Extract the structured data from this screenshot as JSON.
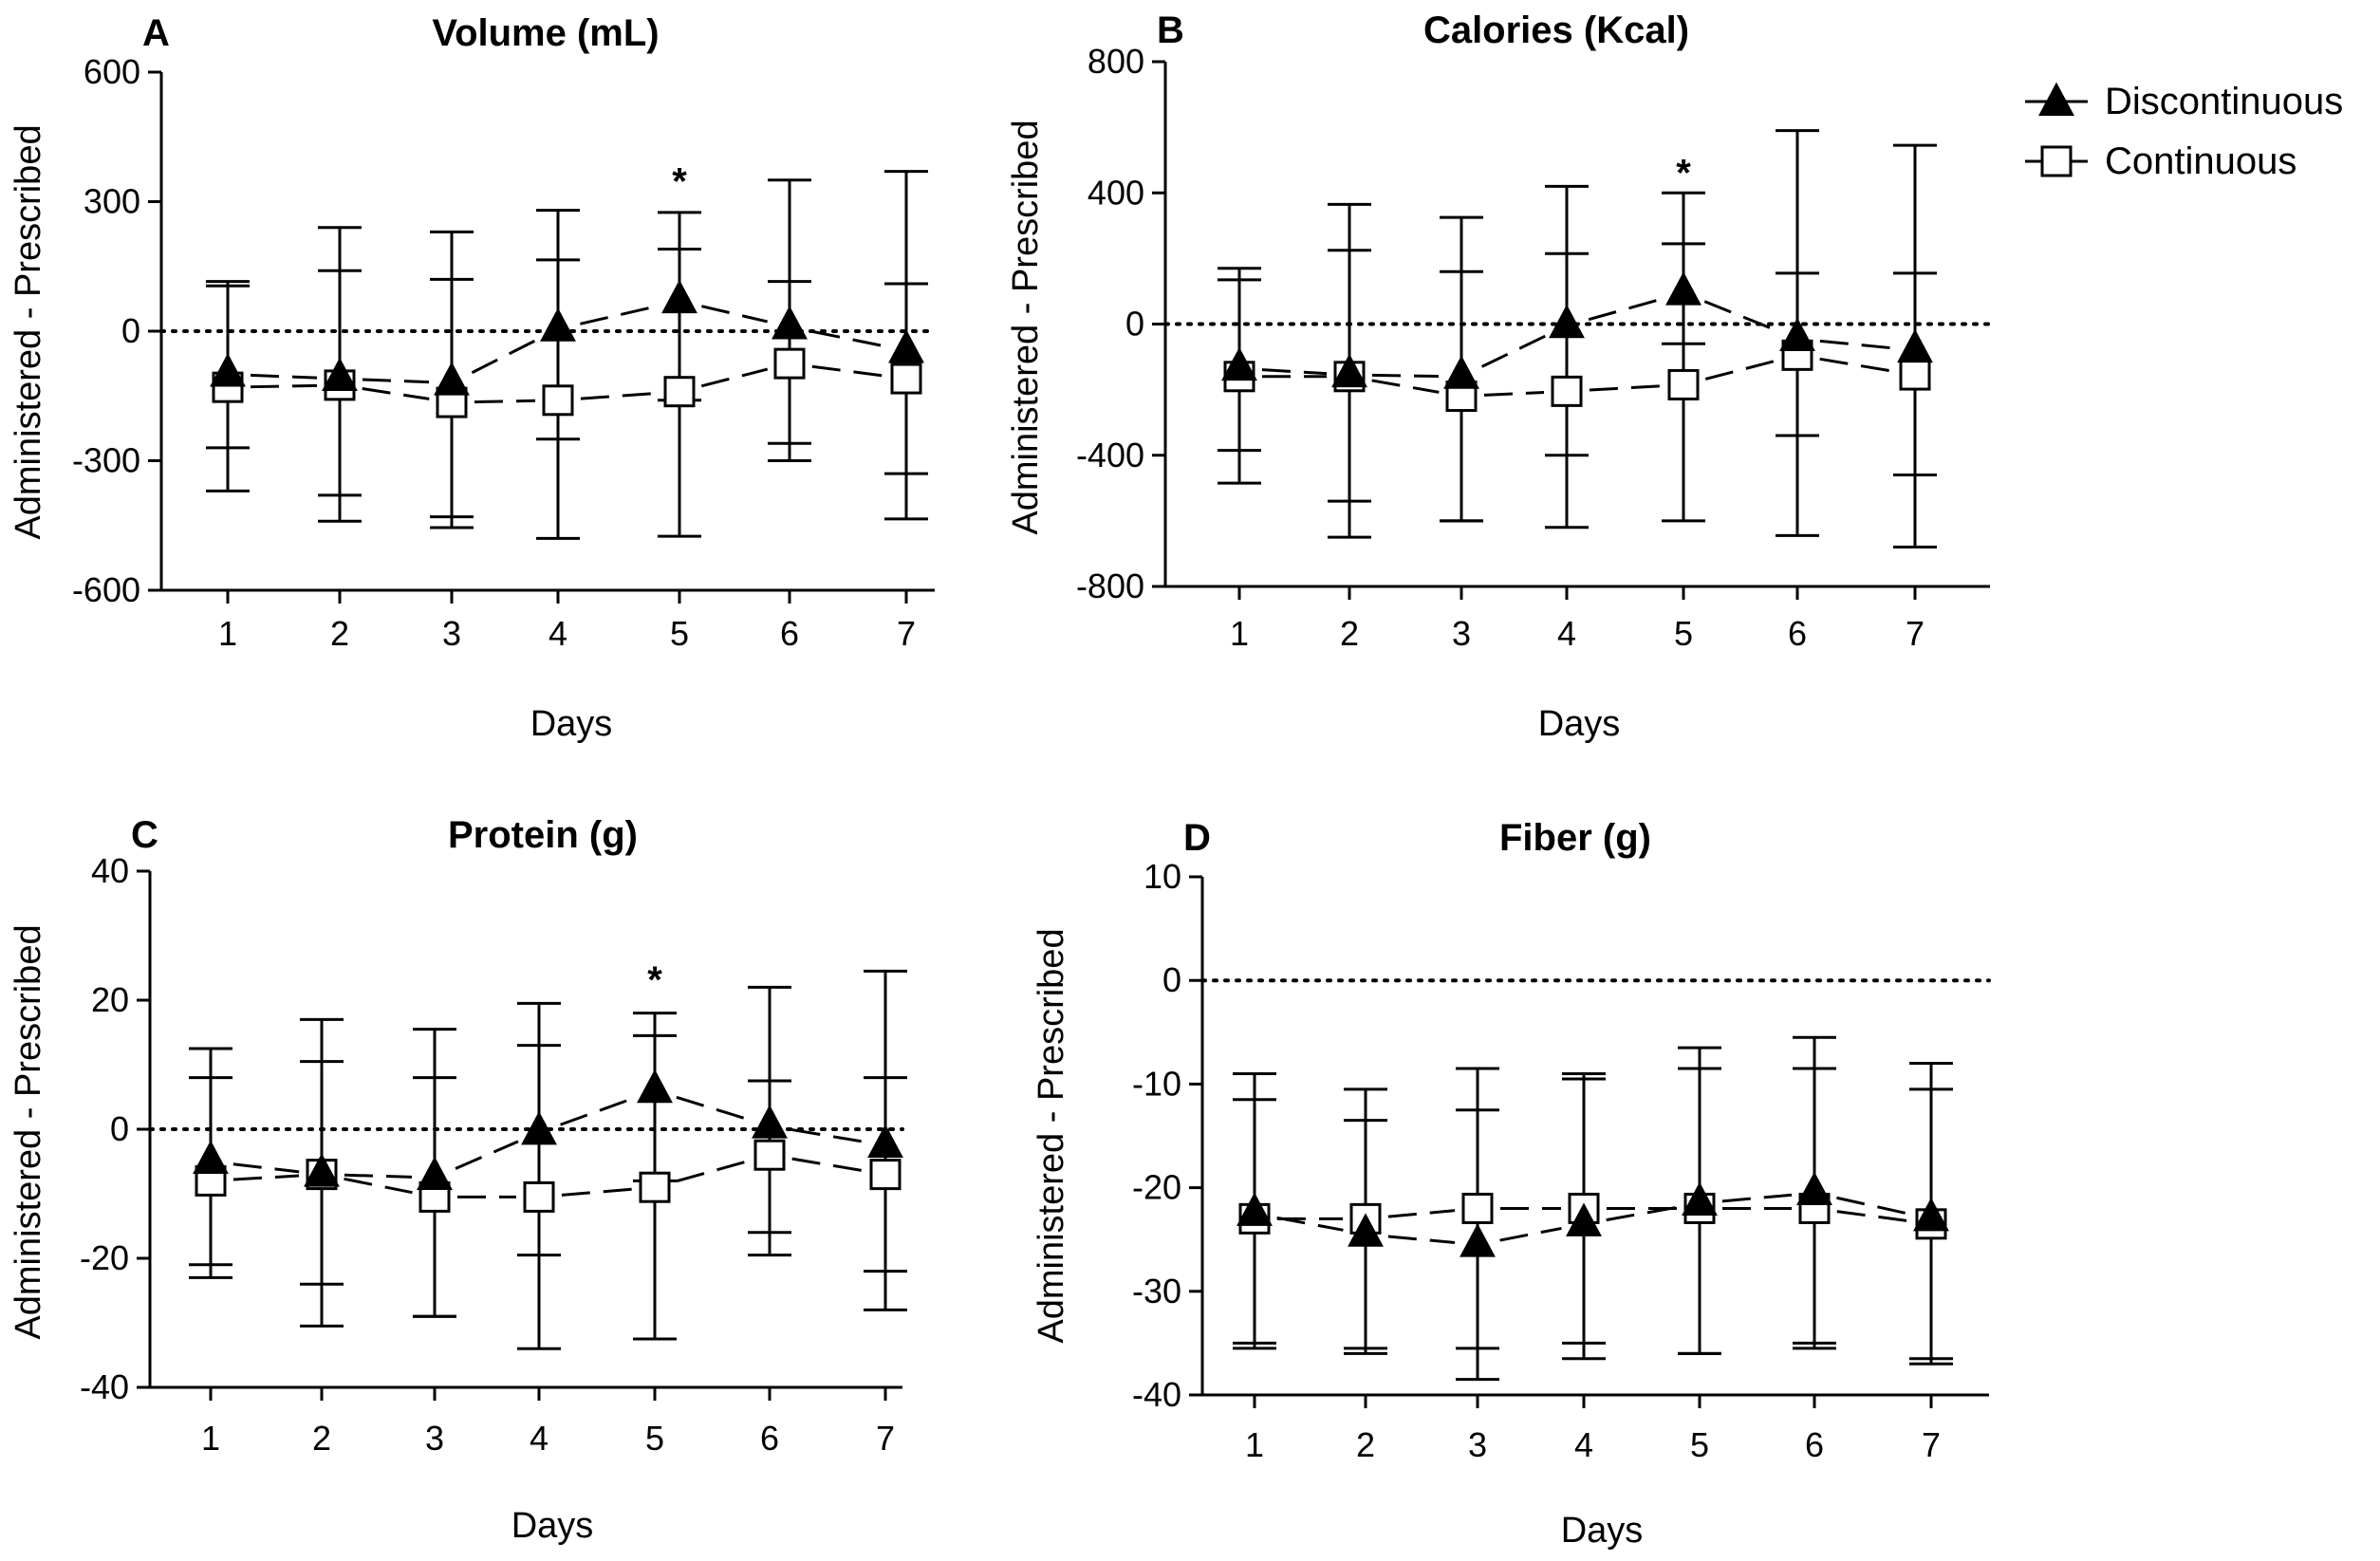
{
  "legend": {
    "discontinuous": "Discontinuous",
    "continuous": "Continuous"
  },
  "chart_data": [
    {
      "type": "line",
      "panel_label": "A",
      "title": "Volume (mL)",
      "xlabel": "Days",
      "ylabel": "Administered - Prescribed",
      "categories": [
        "1",
        "2",
        "3",
        "4",
        "5",
        "6",
        "7"
      ],
      "ylim": [
        -600,
        600
      ],
      "yticks": [
        -600,
        -300,
        0,
        300,
        600
      ],
      "ytick_labels": [
        "-600",
        "-300",
        "0",
        "300",
        "600"
      ],
      "reference_line": 0,
      "significance": [
        {
          "day": "5",
          "label": "*",
          "at": 300
        }
      ],
      "series": [
        {
          "name": "Discontinuous",
          "marker": "triangle",
          "values": [
            -100,
            -110,
            -120,
            5,
            70,
            10,
            -45
          ],
          "err_low": [
            -370,
            -380,
            -430,
            -250,
            -160,
            -260,
            -330
          ],
          "err_high": [
            115,
            140,
            120,
            165,
            275,
            115,
            110
          ]
        },
        {
          "name": "Continuous",
          "marker": "square",
          "values": [
            -130,
            -125,
            -165,
            -160,
            -140,
            -75,
            -110
          ],
          "err_low": [
            -270,
            -440,
            -455,
            -480,
            -475,
            -300,
            -435
          ],
          "err_high": [
            105,
            240,
            230,
            280,
            190,
            350,
            370
          ]
        }
      ]
    },
    {
      "type": "line",
      "panel_label": "B",
      "title": "Calories (Kcal)",
      "xlabel": "Days",
      "ylabel": "Administered - Prescribed",
      "categories": [
        "1",
        "2",
        "3",
        "4",
        "5",
        "6",
        "7"
      ],
      "ylim": [
        -800,
        800
      ],
      "yticks": [
        -800,
        -400,
        0,
        400,
        800
      ],
      "ytick_labels": [
        "-800",
        "-400",
        "0",
        "400",
        "800"
      ],
      "reference_line": 0,
      "significance": [
        {
          "day": "5",
          "label": "*",
          "at": 400
        }
      ],
      "series": [
        {
          "name": "Discontinuous",
          "marker": "triangle",
          "values": [
            -135,
            -155,
            -160,
            -5,
            95,
            -45,
            -80
          ],
          "err_low": [
            -385,
            -540,
            -600,
            -400,
            -60,
            -340,
            -460
          ],
          "err_high": [
            170,
            225,
            160,
            215,
            400,
            155,
            155
          ]
        },
        {
          "name": "Continuous",
          "marker": "square",
          "values": [
            -160,
            -160,
            -220,
            -205,
            -185,
            -95,
            -155
          ],
          "err_low": [
            -485,
            -650,
            -600,
            -620,
            -600,
            -645,
            -680
          ],
          "err_high": [
            135,
            365,
            325,
            420,
            245,
            590,
            545
          ]
        }
      ]
    },
    {
      "type": "line",
      "panel_label": "C",
      "title": "Protein (g)",
      "xlabel": "Days",
      "ylabel": "Administered - Prescribed",
      "categories": [
        "1",
        "2",
        "3",
        "4",
        "5",
        "6",
        "7"
      ],
      "ylim": [
        -40,
        40
      ],
      "yticks": [
        -40,
        -20,
        0,
        20,
        40
      ],
      "ytick_labels": [
        "-40",
        "-20",
        "0",
        "20",
        "40"
      ],
      "reference_line": 0,
      "significance": [
        {
          "day": "5",
          "label": "*",
          "at": 20
        }
      ],
      "series": [
        {
          "name": "Discontinuous",
          "marker": "triangle",
          "values": [
            -5,
            -7,
            -7.5,
            -0.5,
            6,
            0.5,
            -2.5
          ],
          "err_low": [
            -21,
            -24,
            -29,
            -19.5,
            -8,
            -16,
            -22
          ],
          "err_high": [
            12.5,
            10.5,
            8,
            13,
            18,
            7.5,
            8
          ]
        },
        {
          "name": "Continuous",
          "marker": "square",
          "values": [
            -8,
            -7,
            -10.5,
            -10.5,
            -9,
            -4,
            -7
          ],
          "err_low": [
            -23,
            -30.5,
            -29,
            -34,
            -32.5,
            -19.5,
            -28
          ],
          "err_high": [
            8,
            17,
            15.5,
            19.5,
            14.5,
            22,
            24.5
          ]
        }
      ]
    },
    {
      "type": "line",
      "panel_label": "D",
      "title": "Fiber (g)",
      "xlabel": "Days",
      "ylabel": "Administered - Prescribed",
      "categories": [
        "1",
        "2",
        "3",
        "4",
        "5",
        "6",
        "7"
      ],
      "ylim": [
        -40,
        10
      ],
      "yticks": [
        -40,
        -30,
        -20,
        -10,
        0,
        10
      ],
      "ytick_labels": [
        "-40",
        "-30",
        "-20",
        "-10",
        "0",
        "10"
      ],
      "reference_line": 0,
      "significance": [],
      "series": [
        {
          "name": "Discontinuous",
          "marker": "triangle",
          "values": [
            -22.5,
            -24.5,
            -25.5,
            -23.5,
            -21.5,
            -20.5,
            -23
          ],
          "err_low": [
            -35,
            -35.5,
            -38.5,
            -35,
            -36,
            -35,
            -36.5
          ],
          "err_high": [
            -9,
            -13.5,
            -12.5,
            -9.5,
            -6.5,
            -8.5,
            -10.5
          ]
        },
        {
          "name": "Continuous",
          "marker": "square",
          "values": [
            -23,
            -23,
            -22,
            -22,
            -22,
            -22,
            -23.5
          ],
          "err_low": [
            -35.5,
            -36,
            -35.5,
            -36.5,
            -36,
            -35.5,
            -37
          ],
          "err_high": [
            -11.5,
            -10.5,
            -8.5,
            -9,
            -8.5,
            -5.5,
            -8
          ]
        }
      ]
    }
  ]
}
